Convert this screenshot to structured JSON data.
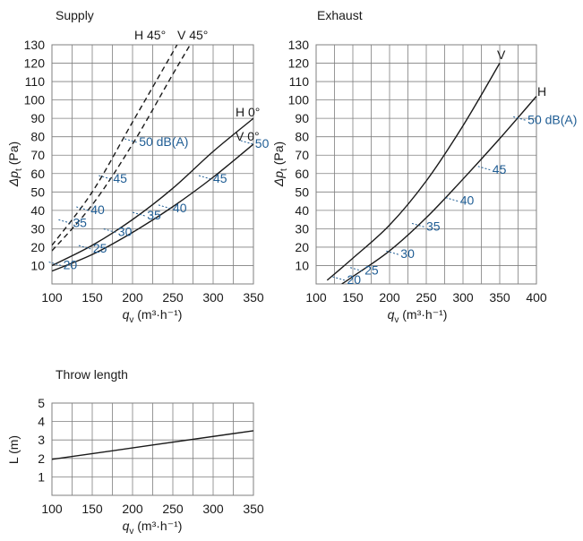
{
  "chart_data": [
    {
      "type": "line",
      "title": "Supply",
      "xlabel": "q_v (m³·h⁻¹)",
      "ylabel": "Δp_t (Pa)",
      "xlim": [
        100,
        350
      ],
      "ylim": [
        0,
        130
      ],
      "xticks": [
        100,
        150,
        200,
        250,
        300,
        350
      ],
      "yticks": [
        10,
        20,
        30,
        40,
        50,
        60,
        70,
        80,
        90,
        100,
        110,
        120,
        130
      ],
      "grid": true,
      "series": [
        {
          "name": "H 0°",
          "style": "solid",
          "x": [
            100,
            150,
            200,
            250,
            300,
            350
          ],
          "y": [
            10,
            21,
            35,
            52,
            72,
            90
          ]
        },
        {
          "name": "V 0°",
          "style": "solid",
          "x": [
            100,
            150,
            200,
            250,
            300,
            350
          ],
          "y": [
            7,
            16,
            28,
            42,
            58,
            76
          ]
        },
        {
          "name": "H 45°",
          "style": "dashed",
          "x": [
            100,
            150,
            200,
            250,
            268
          ],
          "y": [
            21,
            50,
            88,
            126,
            140
          ]
        },
        {
          "name": "V 45°",
          "style": "dashed",
          "x": [
            100,
            150,
            200,
            250,
            285
          ],
          "y": [
            18,
            43,
            76,
            114,
            140
          ]
        }
      ],
      "annotations": [
        {
          "text": "20",
          "x": 114,
          "y": 8
        },
        {
          "text": "25",
          "x": 151,
          "y": 17
        },
        {
          "text": "30",
          "x": 182,
          "y": 26
        },
        {
          "text": "35",
          "x": 126,
          "y": 31
        },
        {
          "text": "35",
          "x": 218,
          "y": 35
        },
        {
          "text": "40",
          "x": 148,
          "y": 38
        },
        {
          "text": "40",
          "x": 250,
          "y": 39
        },
        {
          "text": "45",
          "x": 176,
          "y": 55
        },
        {
          "text": "45",
          "x": 300,
          "y": 55
        },
        {
          "text": "50 dB(A)",
          "x": 208,
          "y": 75
        },
        {
          "text": "50",
          "x": 352,
          "y": 74
        }
      ]
    },
    {
      "type": "line",
      "title": "Exhaust",
      "xlabel": "q_v (m³·h⁻¹)",
      "ylabel": "Δp_t (Pa)",
      "xlim": [
        100,
        400
      ],
      "ylim": [
        0,
        130
      ],
      "xticks": [
        100,
        150,
        200,
        250,
        300,
        350,
        400
      ],
      "yticks": [
        10,
        20,
        30,
        40,
        50,
        60,
        70,
        80,
        90,
        100,
        110,
        120,
        130
      ],
      "grid": true,
      "series": [
        {
          "name": "V",
          "style": "solid",
          "x": [
            115,
            150,
            200,
            250,
            300,
            350
          ],
          "y": [
            2,
            14,
            32,
            56,
            86,
            120
          ]
        },
        {
          "name": "H",
          "style": "solid",
          "x": [
            135,
            150,
            200,
            250,
            300,
            350,
            400
          ],
          "y": [
            0,
            4,
            18,
            36,
            57,
            79,
            102
          ]
        }
      ],
      "annotations": [
        {
          "text": "20",
          "x": 142,
          "y": 0
        },
        {
          "text": "25",
          "x": 166,
          "y": 5
        },
        {
          "text": "30",
          "x": 215,
          "y": 14
        },
        {
          "text": "35",
          "x": 250,
          "y": 29
        },
        {
          "text": "40",
          "x": 296,
          "y": 43
        },
        {
          "text": "45",
          "x": 340,
          "y": 60
        },
        {
          "text": "50 dB(A)",
          "x": 388,
          "y": 87
        }
      ]
    },
    {
      "type": "line",
      "title": "Throw length",
      "xlabel": "q_v (m³·h⁻¹)",
      "ylabel": "L (m)",
      "xlim": [
        100,
        350
      ],
      "ylim": [
        0,
        5
      ],
      "xticks": [
        100,
        150,
        200,
        250,
        300,
        350
      ],
      "yticks": [
        1,
        2,
        3,
        4,
        5
      ],
      "grid": true,
      "series": [
        {
          "name": "",
          "style": "solid",
          "x": [
            100,
            350
          ],
          "y": [
            1.95,
            3.5
          ]
        }
      ]
    }
  ],
  "colors": {
    "curve": "#1a1a1a",
    "grid": "#7f7f7f",
    "noise": "#1f5d94"
  }
}
